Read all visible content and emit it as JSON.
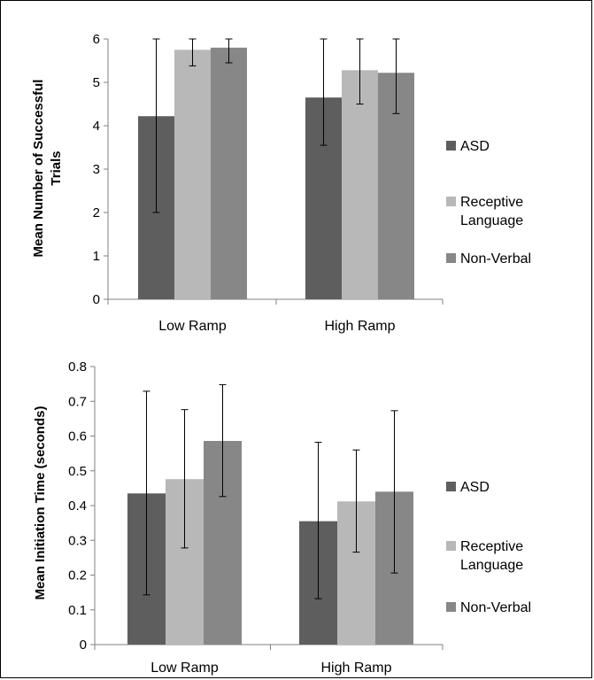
{
  "colors": {
    "ASD": "#5e5e5e",
    "Receptive Language": "#b8b8b8",
    "Non-Verbal": "#878787",
    "axis": "#808080",
    "errorbar": "#000000"
  },
  "chart_data": [
    {
      "type": "bar",
      "ylabel_lines": [
        "Mean Number of Successful",
        "Trials"
      ],
      "categories": [
        "Low Ramp",
        "High Ramp"
      ],
      "ylim": [
        0,
        6
      ],
      "yticks": [
        "0",
        "1",
        "2",
        "3",
        "4",
        "5",
        "6"
      ],
      "grid": false,
      "legend_position": "right",
      "series": [
        {
          "name": "ASD",
          "values": [
            4.22,
            4.65
          ],
          "err_low": [
            2.0,
            3.55
          ],
          "err_high": [
            6.0,
            6.0
          ]
        },
        {
          "name": "Receptive Language",
          "values": [
            5.75,
            5.28
          ],
          "err_low": [
            5.38,
            4.5
          ],
          "err_high": [
            6.0,
            6.0
          ]
        },
        {
          "name": "Non-Verbal",
          "values": [
            5.8,
            5.22
          ],
          "err_low": [
            5.45,
            4.28
          ],
          "err_high": [
            6.0,
            6.0
          ]
        }
      ],
      "legend_labels": [
        [
          "ASD"
        ],
        [
          "Receptive",
          "Language"
        ],
        [
          "Non-Verbal"
        ]
      ]
    },
    {
      "type": "bar",
      "ylabel_lines": [
        "Mean Initiation Time (seconds)"
      ],
      "categories": [
        "Low Ramp",
        "High Ramp"
      ],
      "ylim": [
        0,
        0.8
      ],
      "yticks": [
        "0",
        "0.1",
        "0.2",
        "0.3",
        "0.4",
        "0.5",
        "0.6",
        "0.7",
        "0.8"
      ],
      "grid": false,
      "legend_position": "right",
      "series": [
        {
          "name": "ASD",
          "values": [
            0.435,
            0.355
          ],
          "err_low": [
            0.143,
            0.132
          ],
          "err_high": [
            0.729,
            0.582
          ]
        },
        {
          "name": "Receptive Language",
          "values": [
            0.476,
            0.412
          ],
          "err_low": [
            0.278,
            0.266
          ],
          "err_high": [
            0.676,
            0.56
          ]
        },
        {
          "name": "Non-Verbal",
          "values": [
            0.586,
            0.44
          ],
          "err_low": [
            0.426,
            0.206
          ],
          "err_high": [
            0.748,
            0.673
          ]
        }
      ],
      "legend_labels": [
        [
          "ASD"
        ],
        [
          "Receptive",
          "Language"
        ],
        [
          "Non-Verbal"
        ]
      ]
    }
  ]
}
